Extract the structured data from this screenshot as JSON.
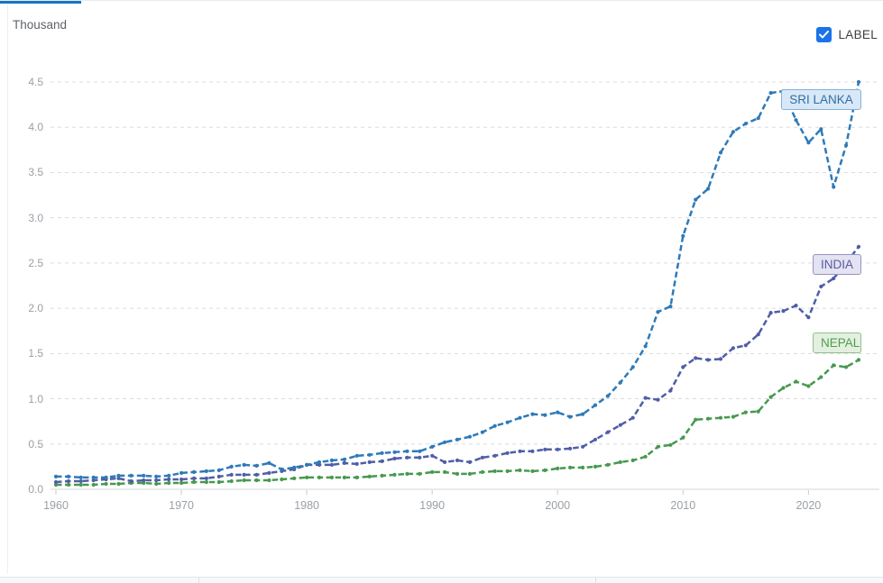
{
  "header": {
    "y_unit_label": "Thousand"
  },
  "controls": {
    "label_checkbox": {
      "label": "LABEL",
      "checked": true,
      "checkbox_color": "#1a73e8"
    }
  },
  "chart_data": {
    "type": "line",
    "title": "",
    "ylabel": "Thousand",
    "xlabel": "",
    "ylim": [
      0,
      4.5
    ],
    "xlim": [
      1960,
      2024
    ],
    "grid": "horizontal-dashed",
    "y_ticks": [
      "0.0",
      "0.5",
      "1.0",
      "1.5",
      "2.0",
      "2.5",
      "3.0",
      "3.5",
      "4.0",
      "4.5"
    ],
    "x_ticks": [
      "1960",
      "1970",
      "1980",
      "1990",
      "2000",
      "2010",
      "2020"
    ],
    "line_style": "dashed-with-point-markers",
    "x": [
      1960,
      1961,
      1962,
      1963,
      1964,
      1965,
      1966,
      1967,
      1968,
      1969,
      1970,
      1971,
      1972,
      1973,
      1974,
      1975,
      1976,
      1977,
      1978,
      1979,
      1980,
      1981,
      1982,
      1983,
      1984,
      1985,
      1986,
      1987,
      1988,
      1989,
      1990,
      1991,
      1992,
      1993,
      1994,
      1995,
      1996,
      1997,
      1998,
      1999,
      2000,
      2001,
      2002,
      2003,
      2004,
      2005,
      2006,
      2007,
      2008,
      2009,
      2010,
      2011,
      2012,
      2013,
      2014,
      2015,
      2016,
      2017,
      2018,
      2019,
      2020,
      2021,
      2022,
      2023,
      2024
    ],
    "series": [
      {
        "name": "NEPAL",
        "color": "#47994f",
        "label_bg": "#e3f0df",
        "values": [
          0.05,
          0.05,
          0.05,
          0.05,
          0.06,
          0.06,
          0.07,
          0.07,
          0.06,
          0.07,
          0.07,
          0.08,
          0.08,
          0.08,
          0.09,
          0.1,
          0.1,
          0.1,
          0.11,
          0.12,
          0.13,
          0.13,
          0.13,
          0.13,
          0.13,
          0.14,
          0.15,
          0.16,
          0.17,
          0.17,
          0.19,
          0.19,
          0.17,
          0.17,
          0.19,
          0.2,
          0.2,
          0.21,
          0.2,
          0.21,
          0.23,
          0.24,
          0.24,
          0.25,
          0.27,
          0.3,
          0.32,
          0.36,
          0.47,
          0.49,
          0.57,
          0.77,
          0.78,
          0.79,
          0.8,
          0.85,
          0.86,
          1.02,
          1.12,
          1.19,
          1.14,
          1.24,
          1.37,
          1.35,
          1.43
        ]
      },
      {
        "name": "INDIA",
        "color": "#4f5ea6",
        "label_bg": "#e3e3f1",
        "values": [
          0.08,
          0.09,
          0.09,
          0.1,
          0.11,
          0.12,
          0.09,
          0.1,
          0.1,
          0.11,
          0.11,
          0.12,
          0.12,
          0.14,
          0.16,
          0.16,
          0.16,
          0.18,
          0.2,
          0.22,
          0.27,
          0.27,
          0.27,
          0.29,
          0.28,
          0.3,
          0.31,
          0.34,
          0.35,
          0.35,
          0.37,
          0.3,
          0.32,
          0.3,
          0.35,
          0.37,
          0.4,
          0.42,
          0.42,
          0.44,
          0.44,
          0.45,
          0.47,
          0.55,
          0.63,
          0.71,
          0.79,
          1.01,
          0.99,
          1.09,
          1.35,
          1.45,
          1.43,
          1.44,
          1.56,
          1.59,
          1.71,
          1.95,
          1.97,
          2.03,
          1.9,
          2.24,
          2.33,
          2.5,
          2.68
        ]
      },
      {
        "name": "SRI LANKA",
        "color": "#2d7ab9",
        "label_bg": "#d9e8f7",
        "values": [
          0.14,
          0.14,
          0.13,
          0.13,
          0.13,
          0.15,
          0.15,
          0.15,
          0.14,
          0.15,
          0.18,
          0.19,
          0.2,
          0.21,
          0.25,
          0.27,
          0.26,
          0.29,
          0.22,
          0.24,
          0.27,
          0.3,
          0.32,
          0.33,
          0.37,
          0.38,
          0.4,
          0.41,
          0.42,
          0.42,
          0.47,
          0.52,
          0.55,
          0.58,
          0.63,
          0.7,
          0.74,
          0.79,
          0.83,
          0.82,
          0.85,
          0.8,
          0.83,
          0.93,
          1.03,
          1.18,
          1.35,
          1.58,
          1.96,
          2.02,
          2.8,
          3.2,
          3.32,
          3.72,
          3.95,
          4.04,
          4.1,
          4.38,
          4.4,
          4.08,
          3.83,
          3.98,
          3.34,
          3.8,
          4.5
        ]
      }
    ]
  }
}
